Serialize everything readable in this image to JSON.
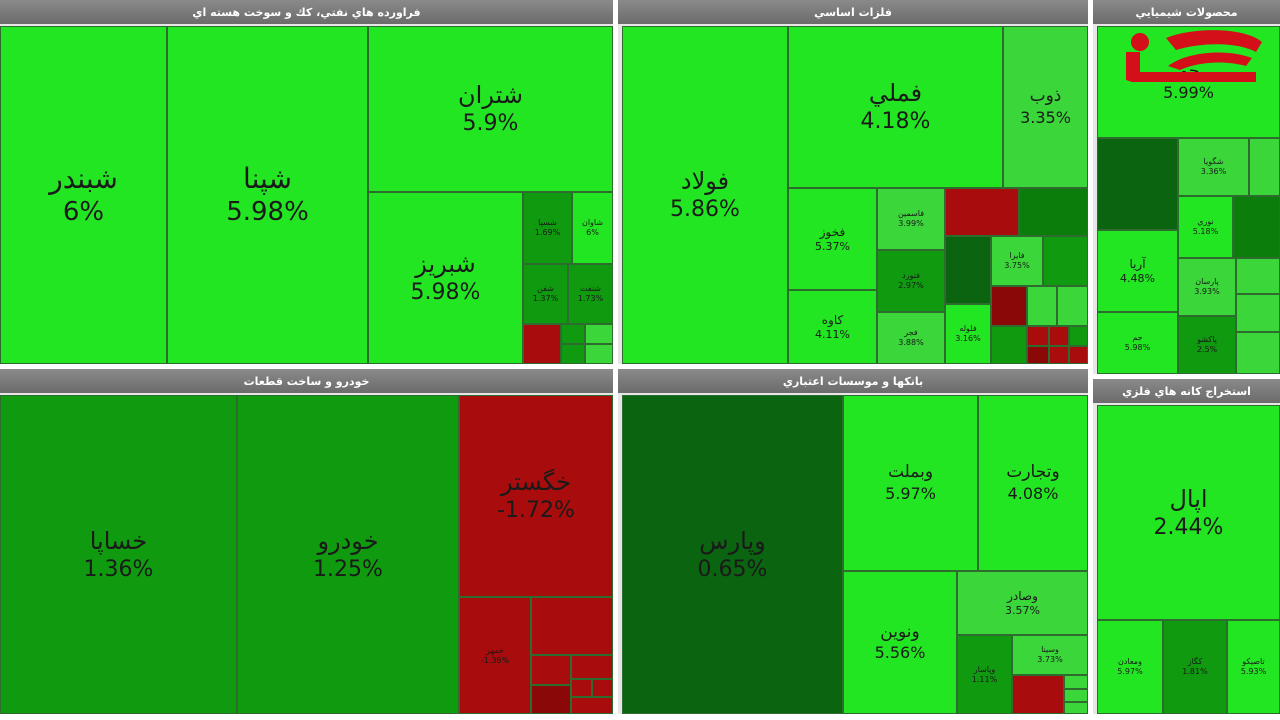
{
  "panels": {
    "refinery": {
      "title": "فراورده هاي نفتي، كك و سوخت هسته اي",
      "tiles": [
        {
          "sym": "شبندر",
          "pct": "6%"
        },
        {
          "sym": "شپنا",
          "pct": "5.98%"
        },
        {
          "sym": "شتران",
          "pct": "5.9%"
        },
        {
          "sym": "شبريز",
          "pct": "5.98%"
        },
        {
          "sym": "شسپا",
          "pct": "1.69%"
        },
        {
          "sym": "شاوان",
          "pct": "6%"
        },
        {
          "sym": "شفن",
          "pct": "1.37%"
        },
        {
          "sym": "شنفت",
          "pct": "1.73%"
        }
      ]
    },
    "metals": {
      "title": "فلزات اساسي",
      "tiles": [
        {
          "sym": "فولاد",
          "pct": "5.86%"
        },
        {
          "sym": "فملي",
          "pct": "4.18%"
        },
        {
          "sym": "ذوب",
          "pct": "3.35%"
        },
        {
          "sym": "فخوز",
          "pct": "5.37%"
        },
        {
          "sym": "فاسمين",
          "pct": "3.99%"
        },
        {
          "sym": "فنورد",
          "pct": "2.97%"
        },
        {
          "sym": "کاوه",
          "pct": "4.11%"
        },
        {
          "sym": "فجر",
          "pct": "3.88%"
        },
        {
          "sym": "فلوله",
          "pct": "3.16%"
        },
        {
          "sym": "فايرا",
          "pct": "3.75%"
        }
      ]
    },
    "chemicals": {
      "title": "محصولات شيميايي",
      "tiles": [
        {
          "sym": "جم",
          "pct": "5.99%"
        },
        {
          "sym": "شگويا",
          "pct": "3.36%"
        },
        {
          "sym": "نوري",
          "pct": "5.18%"
        },
        {
          "sym": "آريا",
          "pct": "4.48%"
        },
        {
          "sym": "پارسان",
          "pct": "3.93%"
        },
        {
          "sym": "جم",
          "pct": "5.98%"
        },
        {
          "sym": "پاکشو",
          "pct": "2.5%"
        }
      ]
    },
    "auto": {
      "title": "خودرو و ساخت قطعات",
      "tiles": [
        {
          "sym": "خساپا",
          "pct": "1.36%"
        },
        {
          "sym": "خودرو",
          "pct": "1.25%"
        },
        {
          "sym": "خگستر",
          "pct": "-1.72%"
        },
        {
          "sym": "خمهر",
          "pct": "-1.36%"
        }
      ]
    },
    "banks": {
      "title": "بانكها و موسسات اعتباري",
      "tiles": [
        {
          "sym": "وپارس",
          "pct": "0.65%"
        },
        {
          "sym": "وبملت",
          "pct": "5.97%"
        },
        {
          "sym": "وتجارت",
          "pct": "4.08%"
        },
        {
          "sym": "وصادر",
          "pct": "3.57%"
        },
        {
          "sym": "ونوين",
          "pct": "5.56%"
        },
        {
          "sym": "وسينا",
          "pct": "3.73%"
        },
        {
          "sym": "وپاسار",
          "pct": "1.11%"
        }
      ]
    },
    "mining": {
      "title": "استخراج كانه هاي فلزي",
      "tiles": [
        {
          "sym": "اپال",
          "pct": "2.44%"
        },
        {
          "sym": "ومعادن",
          "pct": "5.97%"
        },
        {
          "sym": "کگاز",
          "pct": "1.81%"
        },
        {
          "sym": "تاصيکو",
          "pct": "5.93%"
        }
      ]
    }
  },
  "colors": {
    "green_bright": "#22e622",
    "green_light": "#3ad63a",
    "green_medium": "#0f9a0f",
    "green_dark": "#0b7d0b",
    "green_darker": "#0a6410",
    "red": "#a80c0c",
    "red_dark": "#8a0808",
    "header": "#7a7a7a"
  },
  "logo": {
    "icon": "rokna-logo-icon"
  }
}
